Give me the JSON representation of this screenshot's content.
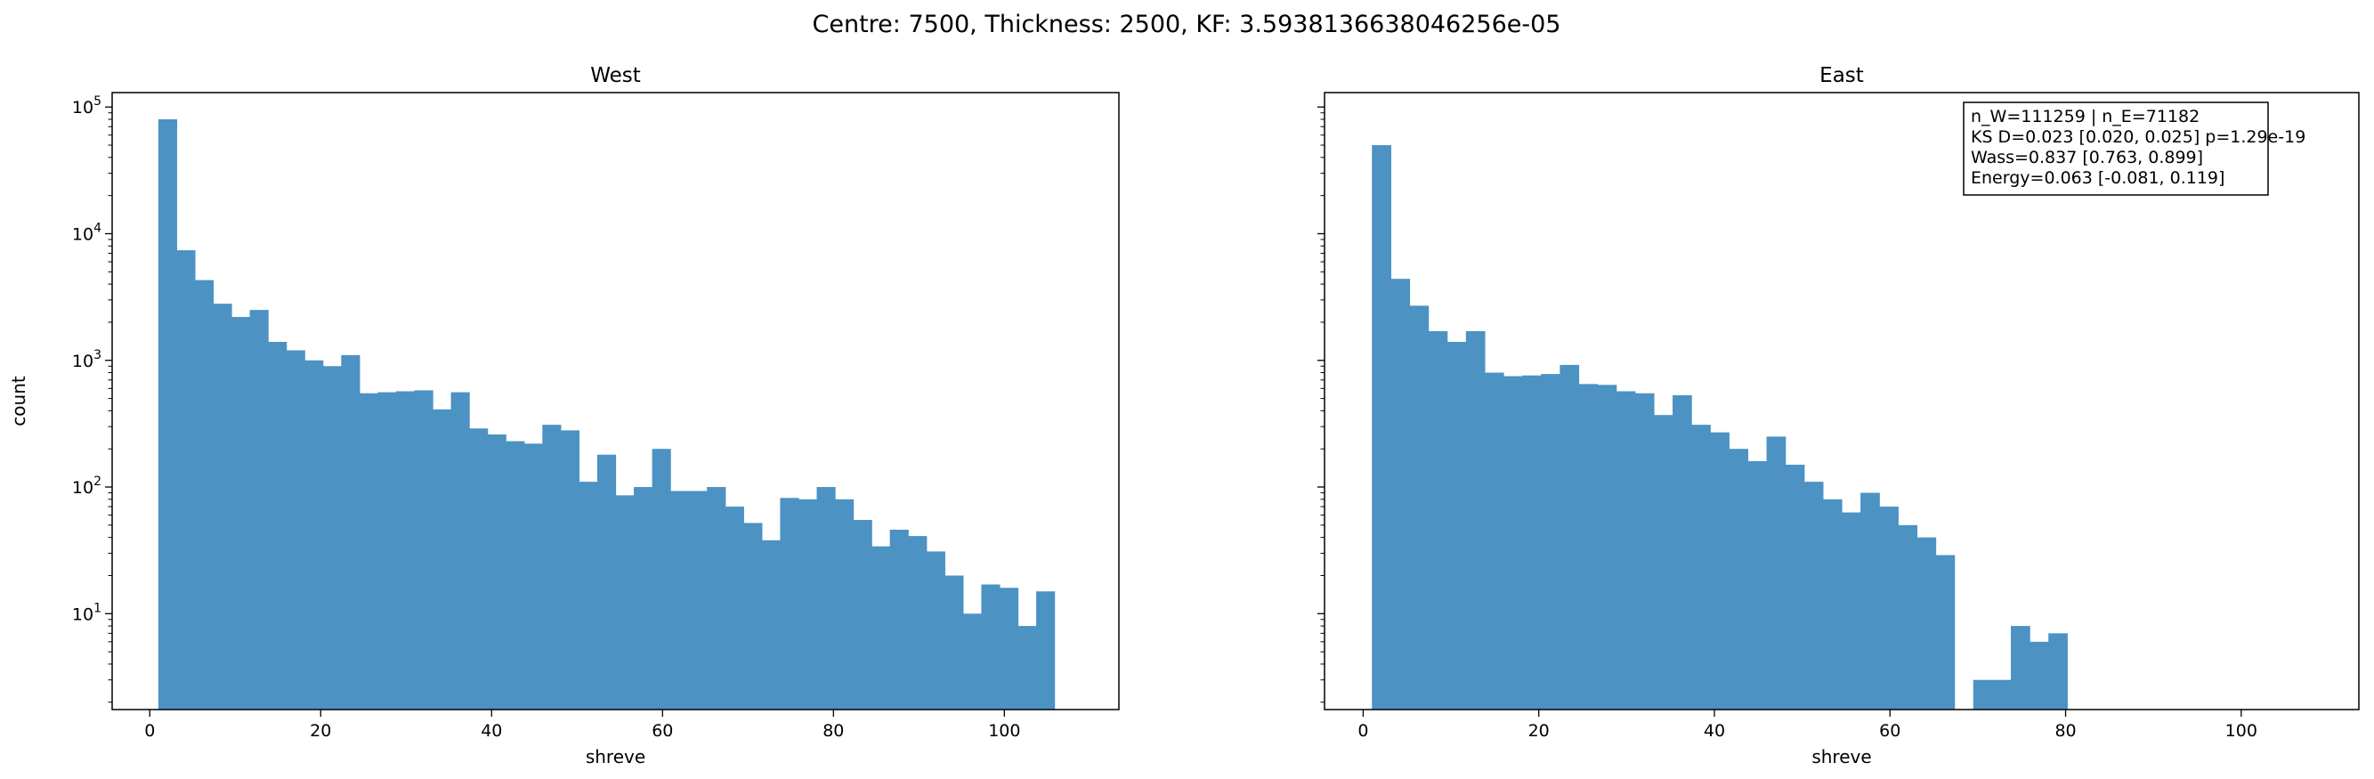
{
  "figure": {
    "suptitle": "Centre: 7500, Thickness: 2500, KF: 3.5938136638046256e-05"
  },
  "bar_color": "#4c92c3",
  "chart_data": [
    {
      "type": "bar",
      "title": "West",
      "xlabel": "shreve",
      "ylabel": "count",
      "yscale": "log",
      "xlim": [
        -4.4,
        113.4
      ],
      "ylim": [
        1.75,
        130000
      ],
      "xticks": [
        0,
        20,
        40,
        60,
        80,
        100
      ],
      "yticks": [
        {
          "value": 10,
          "label": "10",
          "sup": "1"
        },
        {
          "value": 100,
          "label": "10",
          "sup": "2"
        },
        {
          "value": 1000,
          "label": "10",
          "sup": "3"
        },
        {
          "value": 10000,
          "label": "10",
          "sup": "4"
        },
        {
          "value": 100000,
          "label": "10",
          "sup": "5"
        }
      ],
      "bin_start": 1,
      "bin_width": 2.14,
      "values": [
        80000,
        7400,
        4300,
        2800,
        2200,
        2500,
        1400,
        1200,
        1000,
        900,
        1100,
        550,
        560,
        570,
        580,
        410,
        560,
        290,
        260,
        230,
        220,
        310,
        280,
        110,
        180,
        86,
        100,
        200,
        93,
        93,
        100,
        70,
        52,
        38,
        82,
        80,
        100,
        80,
        55,
        34,
        46,
        41,
        31,
        20,
        10,
        17,
        16,
        8,
        15
      ]
    },
    {
      "type": "bar",
      "title": "East",
      "xlabel": "shreve",
      "ylabel": "",
      "yscale": "log",
      "xlim": [
        -4.4,
        113.4
      ],
      "ylim": [
        1.75,
        130000
      ],
      "xticks": [
        0,
        20,
        40,
        60,
        80,
        100
      ],
      "yticks": [],
      "bin_start": 1,
      "bin_width": 2.14,
      "values": [
        50000,
        4400,
        2700,
        1700,
        1400,
        1700,
        800,
        750,
        760,
        780,
        920,
        650,
        640,
        570,
        550,
        370,
        530,
        310,
        270,
        200,
        160,
        250,
        150,
        110,
        80,
        63,
        90,
        70,
        50,
        40,
        29,
        0,
        3,
        3,
        8,
        6,
        7
      ],
      "annotation": [
        "n_W=111259 | n_E=71182",
        "KS D=0.023 [0.020, 0.025]  p=1.29e-19",
        "Wass=0.837 [0.763, 0.899]",
        "Energy=0.063 [-0.081, 0.119]"
      ]
    }
  ]
}
